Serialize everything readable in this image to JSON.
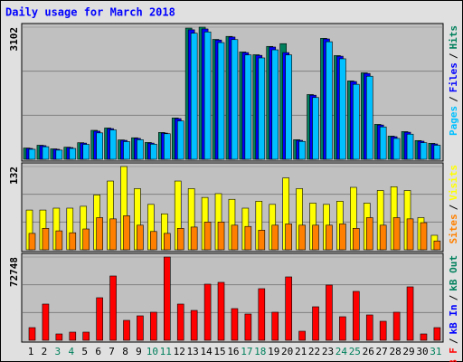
{
  "chart_data": {
    "type": "bar",
    "title": "Daily usage for March 2018",
    "categories": [
      "1",
      "2",
      "3",
      "4",
      "5",
      "6",
      "7",
      "8",
      "9",
      "10",
      "11",
      "12",
      "13",
      "14",
      "15",
      "16",
      "17",
      "18",
      "19",
      "20",
      "21",
      "22",
      "23",
      "24",
      "25",
      "26",
      "27",
      "28",
      "29",
      "30",
      "31"
    ],
    "category_colors": [
      "#000000",
      "#000000",
      "#00805c",
      "#00805c",
      "#000000",
      "#000000",
      "#000000",
      "#000000",
      "#000000",
      "#00805c",
      "#00805c",
      "#000000",
      "#000000",
      "#000000",
      "#000000",
      "#000000",
      "#00805c",
      "#00805c",
      "#000000",
      "#000000",
      "#000000",
      "#000000",
      "#000000",
      "#00805c",
      "#00805c",
      "#000000",
      "#000000",
      "#000000",
      "#000000",
      "#000000",
      "#00805c"
    ],
    "legend_separator": "/",
    "grid": true,
    "panels": [
      {
        "ylim": [
          0,
          3102
        ],
        "yticks": [
          3102
        ],
        "series": [
          {
            "name": "Pages",
            "color": "#00c0ff",
            "values": [
              235,
              295,
              215,
              255,
              350,
              620,
              690,
              415,
              460,
              355,
              600,
              900,
              2960,
              2990,
              2740,
              2810,
              2450,
              2380,
              2570,
              2450,
              420,
              1450,
              2760,
              2360,
              1760,
              1950,
              760,
              490,
              590,
              390,
              330
            ]
          },
          {
            "name": "Files",
            "color": "#0000ff",
            "values": [
              255,
              320,
              235,
              275,
              380,
              660,
              720,
              445,
              490,
              380,
              615,
              955,
              3040,
              3060,
              2800,
              2870,
              2505,
              2440,
              2635,
              2505,
              445,
              1505,
              2825,
              2420,
              1825,
              2015,
              805,
              530,
              635,
              425,
              360
            ]
          },
          {
            "name": "Hits",
            "color": "#00805c",
            "values": [
              265,
              330,
              245,
              285,
              390,
              680,
              735,
              455,
              505,
              395,
              630,
              970,
              3080,
              3102,
              2815,
              2885,
              2520,
              2455,
              2650,
              2715,
              460,
              1520,
              2840,
              2435,
              1840,
              2030,
              820,
              545,
              650,
              440,
              375
            ]
          }
        ]
      },
      {
        "ylim": [
          0,
          132
        ],
        "yticks": [
          132
        ],
        "series": [
          {
            "name": "Sites",
            "color": "#ff8000",
            "values": [
              26,
              34,
              30,
              27,
              33,
              51,
              49,
              54,
              39,
              29,
              26,
              34,
              36,
              44,
              44,
              39,
              37,
              31,
              39,
              41,
              39,
              39,
              39,
              41,
              34,
              51,
              39,
              51,
              49,
              43,
              14
            ]
          },
          {
            "name": "Visits",
            "color": "#ffff00",
            "values": [
              63,
              63,
              66,
              66,
              69,
              87,
              109,
              132,
              97,
              72,
              57,
              109,
              97,
              83,
              89,
              80,
              66,
              77,
              72,
              114,
              97,
              74,
              72,
              77,
              99,
              74,
              94,
              100,
              94,
              51,
              23
            ]
          }
        ]
      },
      {
        "ylim": [
          0,
          72748
        ],
        "yticks": [
          72748
        ],
        "series": [
          {
            "name": "kB F",
            "color": "#ff0000",
            "values": [
              11070,
              31640,
              5540,
              7120,
              7120,
              37180,
              56160,
              17400,
              21360,
              24520,
              72748,
              31640,
              26100,
              49040,
              50620,
              27690,
              22940,
              45090,
              24520,
              55370,
              7910,
              29270,
              48250,
              20570,
              42710,
              22150,
              16610,
              24520,
              46670,
              5540,
              11070
            ]
          },
          {
            "name": "kB In",
            "color": "#0000ff",
            "values": [
              0,
              0,
              0,
              0,
              0,
              0,
              0,
              0,
              0,
              0,
              0,
              0,
              0,
              0,
              0,
              0,
              0,
              0,
              0,
              0,
              0,
              0,
              0,
              0,
              0,
              0,
              0,
              0,
              0,
              0,
              0
            ]
          },
          {
            "name": "kB Out",
            "color": "#00805c",
            "values": [
              0,
              0,
              0,
              0,
              0,
              0,
              0,
              0,
              0,
              0,
              0,
              0,
              0,
              0,
              0,
              0,
              0,
              0,
              0,
              0,
              0,
              0,
              0,
              0,
              0,
              0,
              0,
              0,
              0,
              0,
              0
            ]
          }
        ]
      }
    ]
  }
}
